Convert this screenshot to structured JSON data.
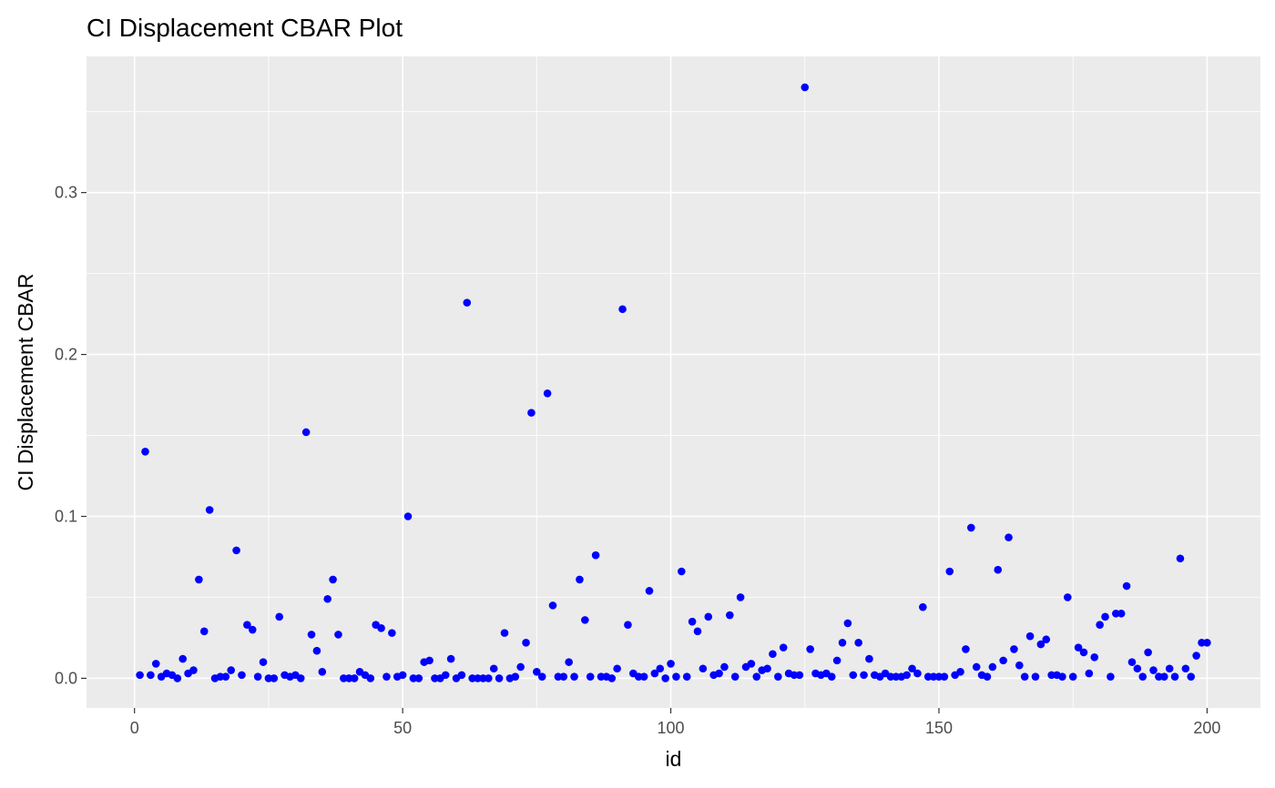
{
  "chart_data": {
    "type": "scatter",
    "title": "CI Displacement CBAR Plot",
    "xlabel": "id",
    "ylabel": "CI Displacement CBAR",
    "xlim": [
      -8.95,
      209.95
    ],
    "ylim": [
      -0.0183,
      0.3841
    ],
    "x_ticks": [
      0,
      50,
      100,
      150,
      200
    ],
    "y_ticks": [
      0.0,
      0.1,
      0.2,
      0.3
    ],
    "x_tick_labels": [
      "0",
      "50",
      "100",
      "150",
      "200"
    ],
    "y_tick_labels": [
      "0.0",
      "0.1",
      "0.2",
      "0.3"
    ],
    "grid": true,
    "legend": "none",
    "colors": {
      "panel": "#ebebeb",
      "grid": "#ffffff",
      "point": "#0000ff"
    },
    "x": [
      1,
      2,
      3,
      4,
      5,
      6,
      7,
      8,
      9,
      10,
      11,
      12,
      13,
      14,
      15,
      16,
      17,
      18,
      19,
      20,
      21,
      22,
      23,
      24,
      25,
      26,
      27,
      28,
      29,
      30,
      31,
      32,
      33,
      34,
      35,
      36,
      37,
      38,
      39,
      40,
      41,
      42,
      43,
      44,
      45,
      46,
      47,
      48,
      49,
      50,
      51,
      52,
      53,
      54,
      55,
      56,
      57,
      58,
      59,
      60,
      61,
      62,
      63,
      64,
      65,
      66,
      67,
      68,
      69,
      70,
      71,
      72,
      73,
      74,
      75,
      76,
      77,
      78,
      79,
      80,
      81,
      82,
      83,
      84,
      85,
      86,
      87,
      88,
      89,
      90,
      91,
      92,
      93,
      94,
      95,
      96,
      97,
      98,
      99,
      100,
      101,
      102,
      103,
      104,
      105,
      106,
      107,
      108,
      109,
      110,
      111,
      112,
      113,
      114,
      115,
      116,
      117,
      118,
      119,
      120,
      121,
      122,
      123,
      124,
      125,
      126,
      127,
      128,
      129,
      130,
      131,
      132,
      133,
      134,
      135,
      136,
      137,
      138,
      139,
      140,
      141,
      142,
      143,
      144,
      145,
      146,
      147,
      148,
      149,
      150,
      151,
      152,
      153,
      154,
      155,
      156,
      157,
      158,
      159,
      160,
      161,
      162,
      163,
      164,
      165,
      166,
      167,
      168,
      169,
      170,
      171,
      172,
      173,
      174,
      175,
      176,
      177,
      178,
      179,
      180,
      181,
      182,
      183,
      184,
      185,
      186,
      187,
      188,
      189,
      190,
      191,
      192,
      193,
      194,
      195,
      196,
      197,
      198,
      199,
      200
    ],
    "y": [
      0.002,
      0.14,
      0.002,
      0.009,
      0.001,
      0.003,
      0.002,
      0.0,
      0.012,
      0.003,
      0.005,
      0.061,
      0.029,
      0.104,
      0.0,
      0.001,
      0.001,
      0.005,
      0.079,
      0.002,
      0.033,
      0.03,
      0.001,
      0.01,
      0.0,
      0.0,
      0.038,
      0.002,
      0.001,
      0.002,
      0.0,
      0.152,
      0.027,
      0.017,
      0.004,
      0.049,
      0.061,
      0.027,
      0.0,
      0.0,
      0.0,
      0.004,
      0.002,
      0.0,
      0.033,
      0.031,
      0.001,
      0.028,
      0.001,
      0.002,
      0.1,
      0.0,
      0.0,
      0.01,
      0.011,
      0.0,
      0.0,
      0.002,
      0.012,
      0.0,
      0.002,
      0.232,
      0.0,
      0.0,
      0.0,
      0.0,
      0.006,
      0.0,
      0.028,
      0.0,
      0.001,
      0.007,
      0.022,
      0.164,
      0.004,
      0.001,
      0.176,
      0.045,
      0.001,
      0.001,
      0.01,
      0.001,
      0.061,
      0.036,
      0.001,
      0.076,
      0.001,
      0.001,
      0.0,
      0.006,
      0.228,
      0.033,
      0.003,
      0.001,
      0.001,
      0.054,
      0.003,
      0.006,
      0.0,
      0.009,
      0.001,
      0.066,
      0.001,
      0.035,
      0.029,
      0.006,
      0.038,
      0.002,
      0.003,
      0.007,
      0.039,
      0.001,
      0.05,
      0.007,
      0.009,
      0.001,
      0.005,
      0.006,
      0.015,
      0.001,
      0.019,
      0.003,
      0.002,
      0.002,
      0.365,
      0.018,
      0.003,
      0.002,
      0.003,
      0.001,
      0.011,
      0.022,
      0.034,
      0.002,
      0.022,
      0.002,
      0.012,
      0.002,
      0.001,
      0.003,
      0.001,
      0.001,
      0.001,
      0.002,
      0.006,
      0.003,
      0.044,
      0.001,
      0.001,
      0.001,
      0.001,
      0.066,
      0.002,
      0.004,
      0.018,
      0.093,
      0.007,
      0.002,
      0.001,
      0.007,
      0.067,
      0.011,
      0.087,
      0.018,
      0.008,
      0.001,
      0.026,
      0.001,
      0.021,
      0.024,
      0.002,
      0.002,
      0.001,
      0.05,
      0.001,
      0.019,
      0.016,
      0.003,
      0.013,
      0.033,
      0.038,
      0.001,
      0.04,
      0.04,
      0.057,
      0.01,
      0.006,
      0.001,
      0.016,
      0.005,
      0.001,
      0.001,
      0.006,
      0.001,
      0.074,
      0.006,
      0.001,
      0.014,
      0.022,
      0.022
    ]
  }
}
